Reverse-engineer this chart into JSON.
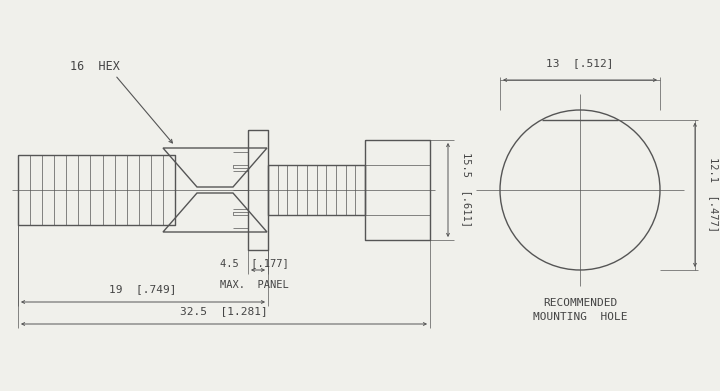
{
  "bg_color": "#f0f0eb",
  "line_color": "#555555",
  "text_color": "#444444",
  "lw_main": 1.0,
  "lw_thin": 0.5,
  "lw_dim": 0.7,
  "figw": 7.2,
  "figh": 3.91,
  "dpi": 100,
  "labels": {
    "hex": "16  HEX",
    "d155": "15.5  [.611]",
    "d45": "4.5  [.177]",
    "max_panel": "MAX.  PANEL",
    "d19": "19  [.749]",
    "d325": "32.5  [1.281]",
    "d13": "13  [.512]",
    "d121": "12.1  [.477]",
    "rec": "RECOMMENDED",
    "mh": "MOUNTING  HOLE"
  }
}
